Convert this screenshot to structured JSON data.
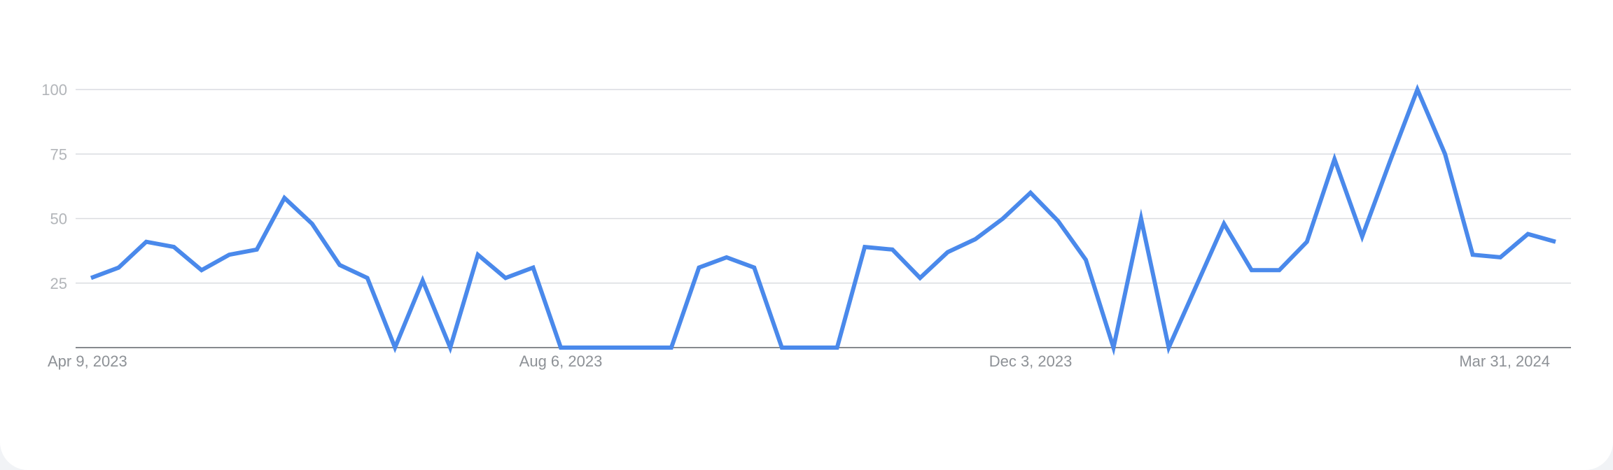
{
  "chart_data": {
    "type": "line",
    "title": "",
    "xlabel": "",
    "ylabel": "",
    "ylim": [
      0,
      100
    ],
    "y_ticks": [
      25,
      50,
      75,
      100
    ],
    "x_tick_labels": [
      "Apr 9, 2023",
      "Aug 6, 2023",
      "Dec 3, 2023",
      "Mar 31, 2024"
    ],
    "x_tick_indices": [
      0,
      17,
      34,
      51
    ],
    "grid": true,
    "legend": "none",
    "line_color": "#4a89eb",
    "series": [
      {
        "values": [
          27,
          31,
          41,
          39,
          30,
          36,
          38,
          58,
          48,
          32,
          27,
          0,
          26,
          0,
          36,
          27,
          31,
          0,
          0,
          0,
          0,
          0,
          31,
          35,
          31,
          0,
          0,
          0,
          39,
          38,
          27,
          37,
          42,
          50,
          60,
          49,
          34,
          0,
          50,
          0,
          24,
          48,
          30,
          30,
          41,
          73,
          43,
          72,
          100,
          75,
          36,
          35,
          44,
          41
        ]
      }
    ]
  }
}
